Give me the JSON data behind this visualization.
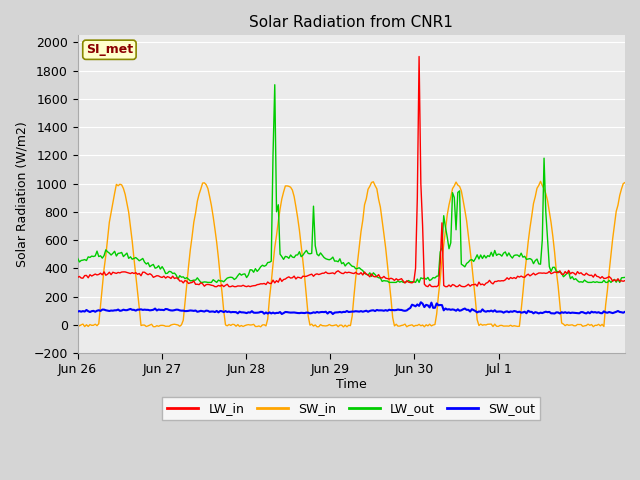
{
  "title": "Solar Radiation from CNR1",
  "ylabel": "Solar Radiation (W/m2)",
  "xlabel": "Time",
  "station_label": "SI_met",
  "ylim": [
    -200,
    2050
  ],
  "yticks": [
    -200,
    0,
    200,
    400,
    600,
    800,
    1000,
    1200,
    1400,
    1600,
    1800,
    2000
  ],
  "xtick_labels": [
    "Jun 26",
    "Jun 27",
    "Jun 28",
    "Jun 29",
    "Jun 30",
    "Jul 1"
  ],
  "colors": {
    "LW_in": "#ff0000",
    "SW_in": "#ffa500",
    "LW_out": "#00cc00",
    "SW_out": "#0000ff"
  },
  "fig_bg": "#d5d5d5",
  "plot_bg": "#ebebeb",
  "grid_color": "#ffffff",
  "n_days": 6.5
}
